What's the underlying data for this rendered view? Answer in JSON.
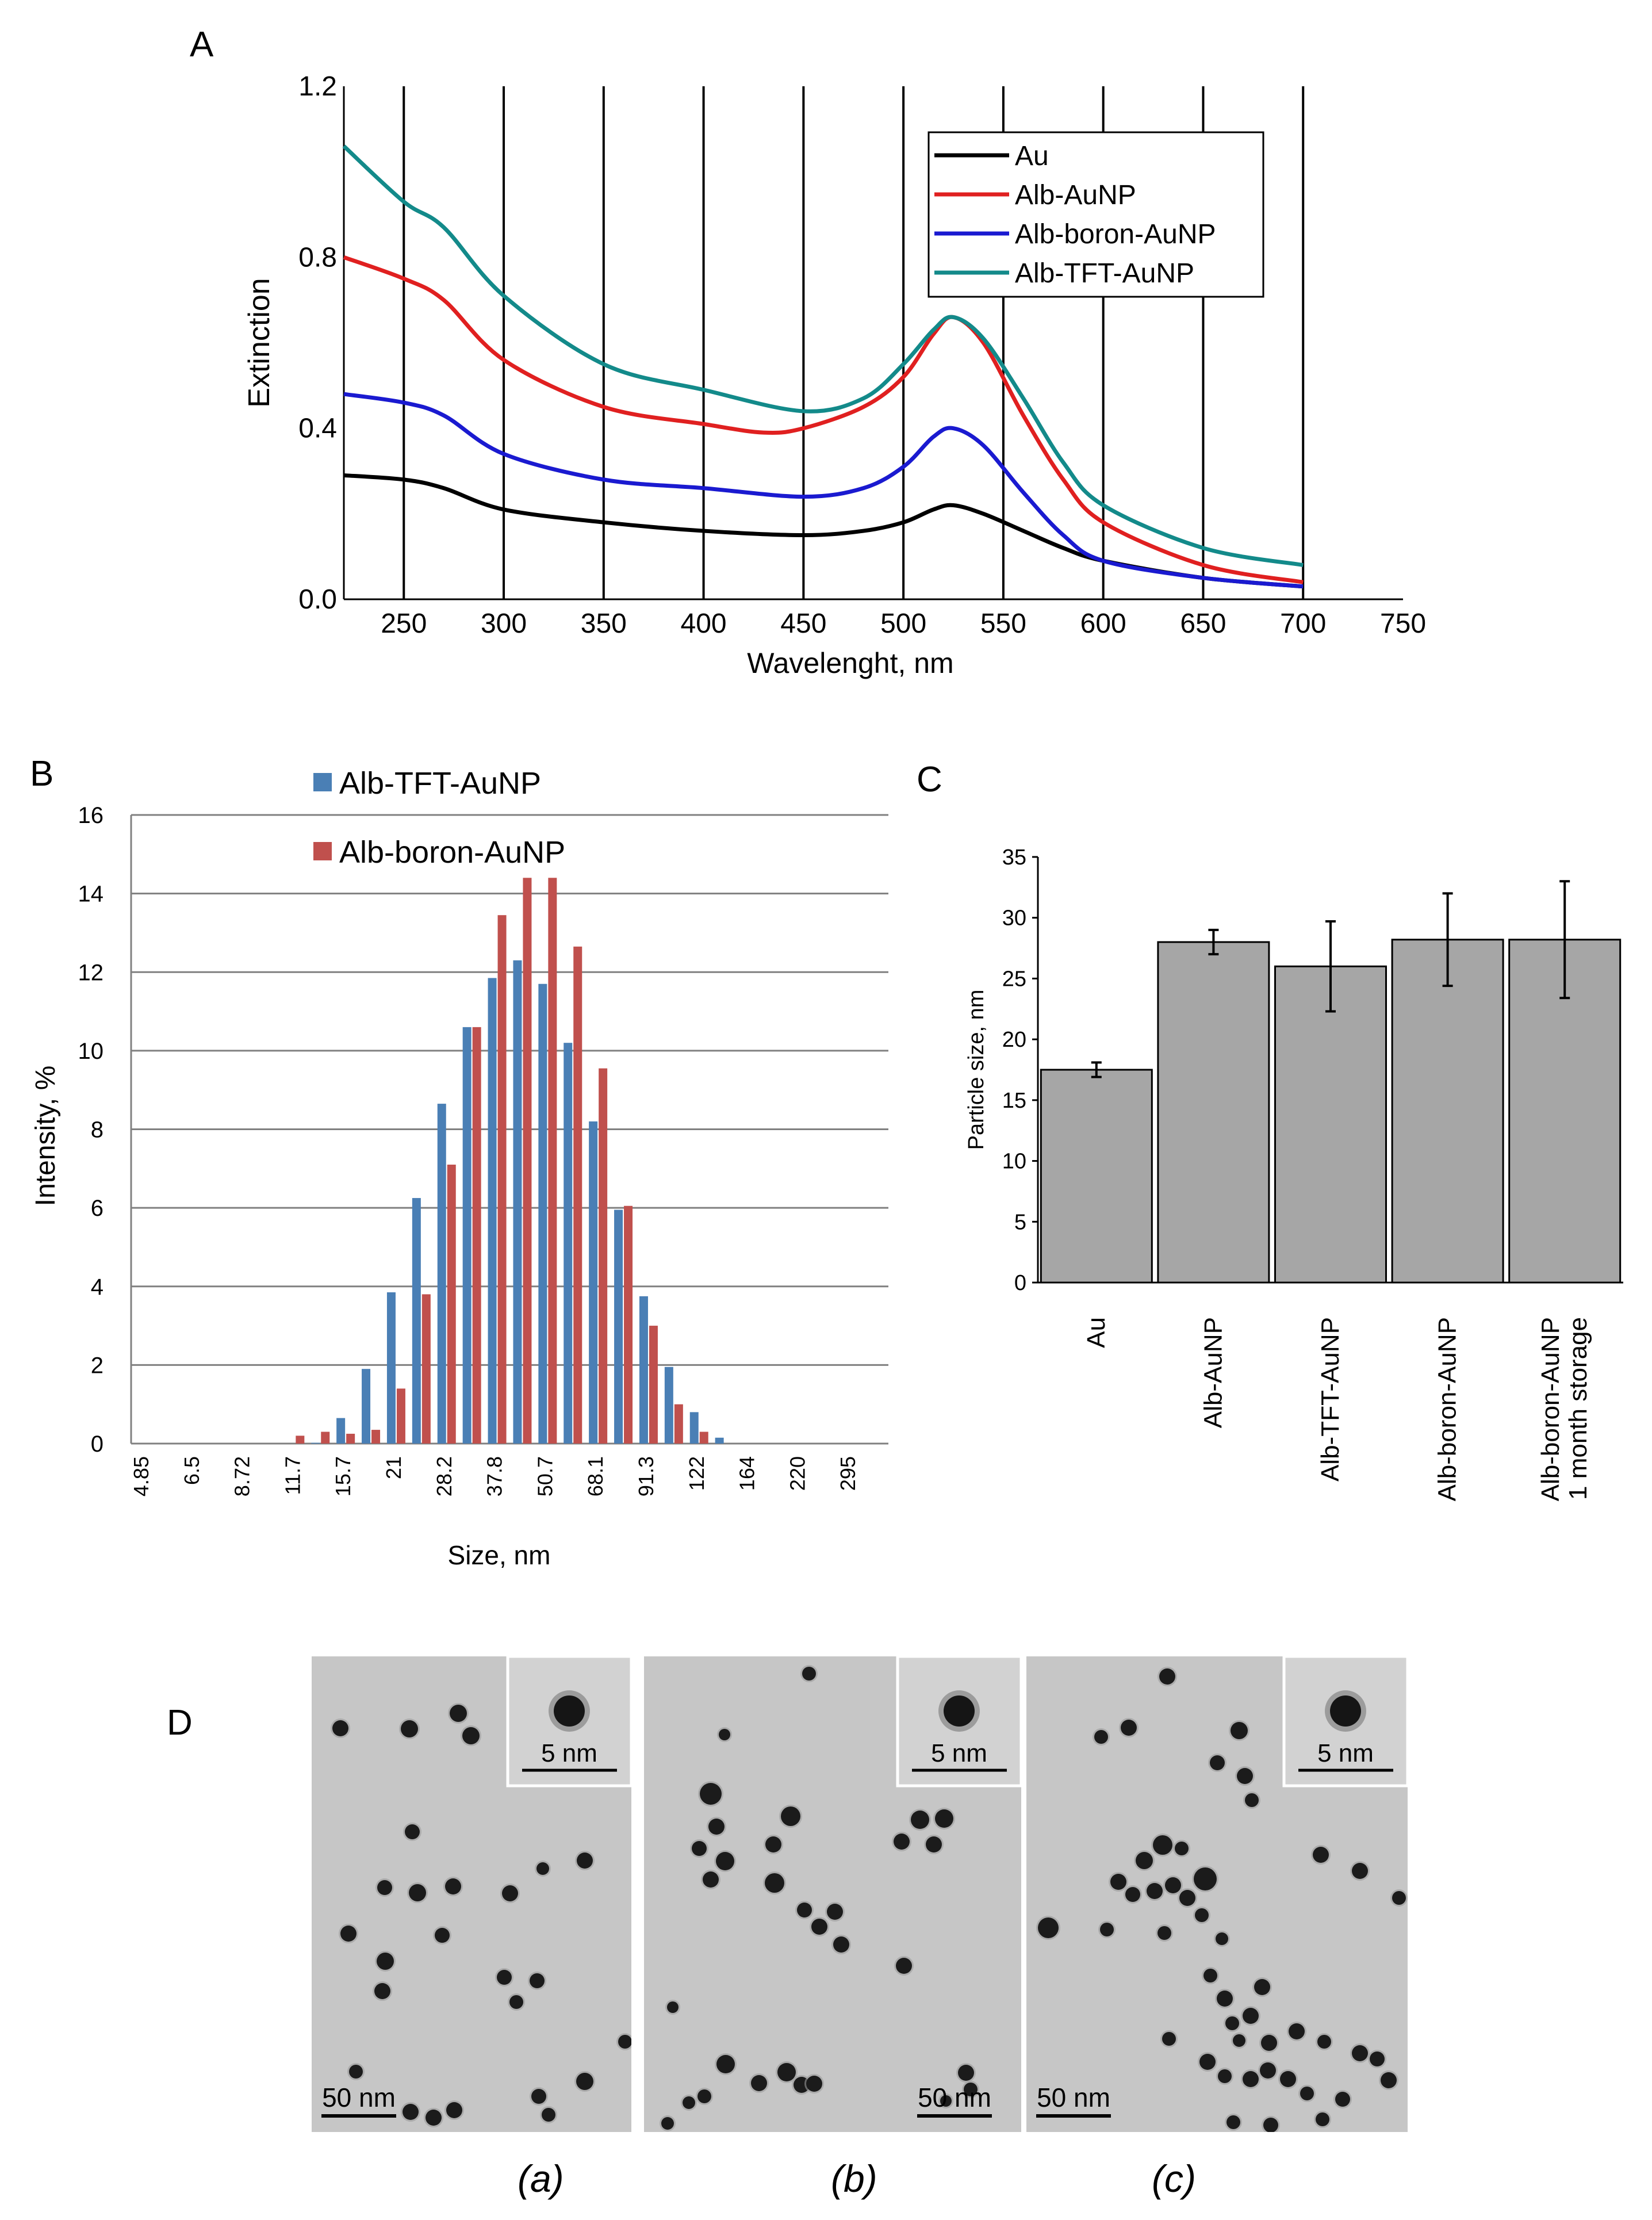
{
  "figure": {
    "panel_a": {
      "letter": "A",
      "chart_data": {
        "type": "line",
        "title": "",
        "xlabel": "Wavelenght, nm",
        "ylabel": "Extinction",
        "xlim": [
          220,
          750
        ],
        "ylim": [
          0,
          1.2
        ],
        "xticks": [
          250,
          300,
          350,
          400,
          450,
          500,
          550,
          600,
          650,
          700,
          750
        ],
        "yticks": [
          0.0,
          0.4,
          0.8,
          1.2
        ],
        "ytick_labels": [
          "0.0",
          "0.4",
          "0.8",
          "1.2"
        ],
        "grid": "vertical",
        "legend": "top-right",
        "series": [
          {
            "name": "Au",
            "color": "#000000",
            "x": [
              220,
              250,
              270,
              300,
              350,
              400,
              450,
              480,
              500,
              515,
              525,
              540,
              560,
              580,
              600,
              650,
              700
            ],
            "y": [
              0.29,
              0.28,
              0.26,
              0.21,
              0.18,
              0.16,
              0.15,
              0.16,
              0.18,
              0.21,
              0.22,
              0.2,
              0.16,
              0.12,
              0.09,
              0.05,
              0.03
            ]
          },
          {
            "name": "Alb-AuNP",
            "color": "#e02020",
            "x": [
              220,
              250,
              270,
              300,
              350,
              400,
              430,
              450,
              480,
              500,
              515,
              525,
              540,
              560,
              580,
              600,
              650,
              700
            ],
            "y": [
              0.8,
              0.75,
              0.7,
              0.56,
              0.45,
              0.41,
              0.39,
              0.4,
              0.45,
              0.52,
              0.62,
              0.66,
              0.6,
              0.43,
              0.28,
              0.18,
              0.08,
              0.04
            ]
          },
          {
            "name": "Alb-boron-AuNP",
            "color": "#1a1ad0",
            "x": [
              220,
              250,
              270,
              300,
              350,
              400,
              450,
              480,
              500,
              515,
              525,
              540,
              560,
              580,
              600,
              650,
              700
            ],
            "y": [
              0.48,
              0.46,
              0.43,
              0.34,
              0.28,
              0.26,
              0.24,
              0.26,
              0.31,
              0.38,
              0.4,
              0.36,
              0.25,
              0.15,
              0.09,
              0.05,
              0.03
            ]
          },
          {
            "name": "Alb-TFT-AuNP",
            "color": "#138a8a",
            "x": [
              220,
              250,
              270,
              300,
              350,
              400,
              450,
              480,
              500,
              515,
              525,
              540,
              560,
              580,
              600,
              650,
              700
            ],
            "y": [
              1.06,
              0.93,
              0.87,
              0.71,
              0.55,
              0.49,
              0.44,
              0.47,
              0.55,
              0.63,
              0.66,
              0.61,
              0.47,
              0.32,
              0.22,
              0.12,
              0.08
            ]
          }
        ]
      }
    },
    "panel_b": {
      "letter": "B",
      "chart_data": {
        "type": "bar",
        "title": "",
        "xlabel": "Size, nm",
        "ylabel": "Intensity, %",
        "ylim": [
          0,
          16
        ],
        "yticks": [
          0,
          2,
          4,
          6,
          8,
          10,
          12,
          14,
          16
        ],
        "grid": "horizontal",
        "legend": "top-left",
        "tick_labels": [
          "4.85",
          "6.5",
          "8.72",
          "11.7",
          "15.7",
          "21",
          "28.2",
          "37.8",
          "50.7",
          "68.1",
          "91.3",
          "122",
          "164",
          "220",
          "295"
        ],
        "n_bins": 30,
        "series": [
          {
            "name": "Alb-TFT-AuNP",
            "color": "#4a7fb5",
            "values": [
              0,
              0,
              0,
              0,
              0,
              0,
              0,
              0.02,
              0.65,
              1.9,
              3.85,
              6.25,
              8.65,
              10.6,
              11.85,
              12.3,
              11.7,
              10.2,
              8.2,
              5.95,
              3.75,
              1.95,
              0.8,
              0.15,
              0,
              0,
              0,
              0,
              0,
              0
            ]
          },
          {
            "name": "Alb-boron-AuNP",
            "color": "#c0504d",
            "values": [
              0,
              0,
              0,
              0,
              0,
              0,
              0.2,
              0.3,
              0.25,
              0.35,
              1.4,
              3.8,
              7.1,
              10.6,
              13.45,
              14.4,
              14.4,
              12.65,
              9.55,
              6.05,
              3.0,
              1.0,
              0.3,
              0,
              0,
              0,
              0,
              0,
              0,
              0
            ]
          }
        ]
      }
    },
    "panel_c": {
      "letter": "C",
      "chart_data": {
        "type": "bar",
        "title": "",
        "xlabel": "",
        "ylabel": "Particle size, nm",
        "ylim": [
          0,
          35
        ],
        "yticks": [
          0,
          5,
          10,
          15,
          20,
          25,
          30,
          35
        ],
        "categories": [
          "Au",
          "Alb-AuNP",
          "Alb-TFT-AuNP",
          "Alb-boron-AuNP",
          "Alb-boron-AuNP 1 month storage"
        ],
        "category_lines": [
          [
            "Au"
          ],
          [
            "Alb-AuNP"
          ],
          [
            "Alb-TFT-AuNP"
          ],
          [
            "Alb-boron-AuNP"
          ],
          [
            "Alb-boron-AuNP",
            "1 month storage"
          ]
        ],
        "values": [
          17.5,
          28.0,
          26.0,
          28.2,
          28.2
        ],
        "errors": [
          0.6,
          1.0,
          3.7,
          3.8,
          4.8
        ],
        "bar_color": "#a6a6a6"
      }
    },
    "panel_d": {
      "letter": "D",
      "images": [
        {
          "caption": "(a)",
          "scale_main": "50 nm",
          "scale_inset": "5 nm"
        },
        {
          "caption": "(b)",
          "scale_main": "50 nm",
          "scale_inset": "5 nm"
        },
        {
          "caption": "(c)",
          "scale_main": "50 nm",
          "scale_inset": "5 nm"
        }
      ]
    }
  }
}
